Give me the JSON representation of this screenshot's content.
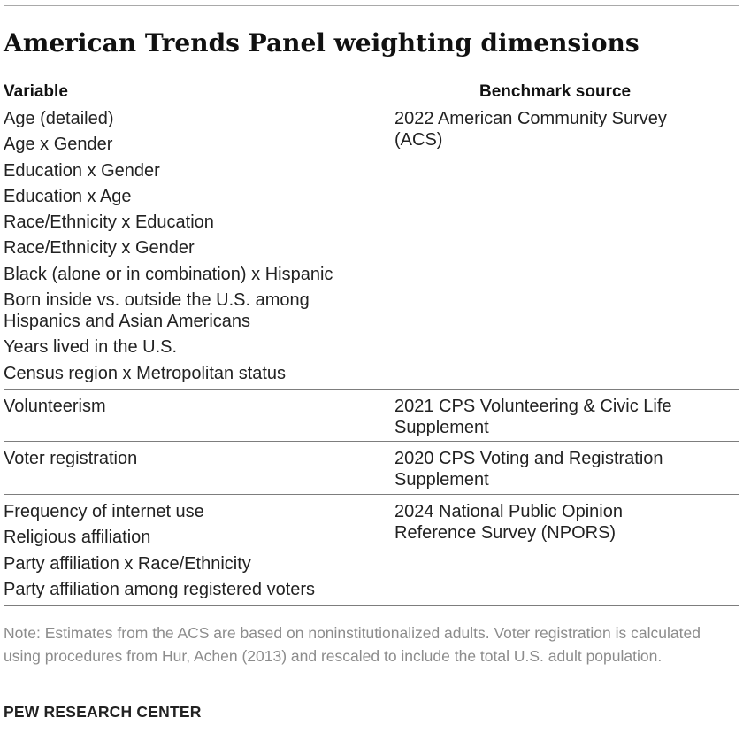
{
  "title": "American Trends Panel weighting dimensions",
  "headers": {
    "variable": "Variable",
    "source": "Benchmark source"
  },
  "sections": [
    {
      "variables": [
        "Age (detailed)",
        "Age x Gender",
        "Education x Gender",
        "Education x Age",
        "Race/Ethnicity x Education",
        "Race/Ethnicity x Gender",
        "Black (alone or in combination) x Hispanic",
        "Born inside vs. outside the U.S. among Hispanics and Asian Americans",
        "Years lived in the U.S.",
        "Census region x Metropolitan status"
      ],
      "source": "2022 American Community Survey (ACS)"
    },
    {
      "variables": [
        "Volunteerism"
      ],
      "source": "2021 CPS Volunteering & Civic Life Supplement"
    },
    {
      "variables": [
        "Voter registration"
      ],
      "source": "2020 CPS Voting and Registration Supplement"
    },
    {
      "variables": [
        "Frequency of internet use",
        "Religious affiliation",
        "Party affiliation x Race/Ethnicity",
        "Party affiliation among registered voters"
      ],
      "source": "2024 National Public Opinion Reference Survey (NPORS)"
    }
  ],
  "note": "Note: Estimates from the ACS are based on noninstitutionalized adults. Voter registration is calculated using procedures from Hur, Achen (2013) and rescaled to include the total U.S. adult population.",
  "footer": "PEW RESEARCH CENTER"
}
